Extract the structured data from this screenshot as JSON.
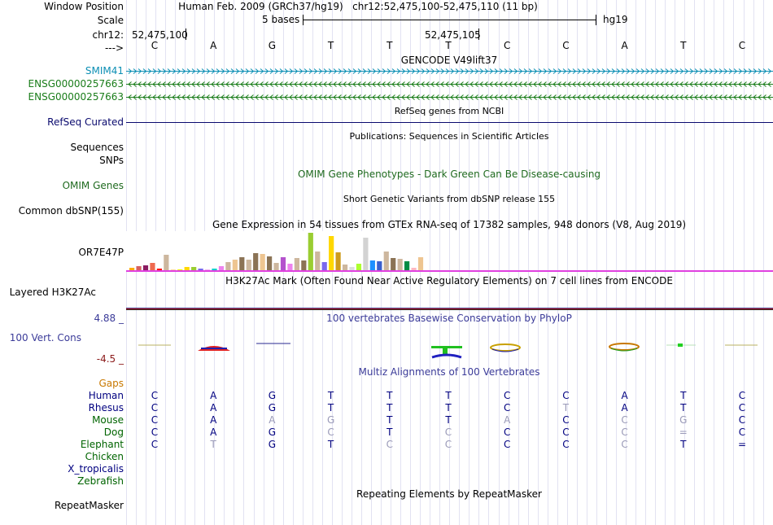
{
  "labels": {
    "window_position": "Window Position",
    "scale": "Scale",
    "chrom": "chr12:",
    "arrow": "--->",
    "smim41": "SMIM41",
    "ensg1": "ENSG00000257663",
    "ensg2": "ENSG00000257663",
    "refseq": "RefSeq Curated",
    "sequences": "Sequences",
    "snps": "SNPs",
    "omim": "OMIM Genes",
    "common_dbsnp": "Common dbSNP(155)",
    "or7e47p": "OR7E47P",
    "h3k27ac": "Layered H3K27Ac",
    "phylop_max": "4.88 _",
    "vert_cons": "100 Vert. Cons",
    "phylop_min": "-4.5 _",
    "gaps": "Gaps",
    "repeatmasker": "RepeatMasker"
  },
  "header": {
    "assembly": "Human Feb. 2009 (GRCh37/hg19)",
    "position": "chr12:52,475,100-52,475,110 (11 bp)",
    "scale_text": "5 bases",
    "scale_db": "hg19",
    "coord_left": "52,475,100",
    "coord_mid": "52,475,105"
  },
  "reference_bases": [
    "C",
    "A",
    "G",
    "T",
    "T",
    "T",
    "C",
    "C",
    "A",
    "T",
    "C"
  ],
  "track_titles": {
    "gencode": "GENCODE V49lift37",
    "refseq": "RefSeq genes from NCBI",
    "publications": "Publications: Sequences in Scientific Articles",
    "omim": "OMIM Gene Phenotypes - Dark Green Can Be Disease-causing",
    "dbsnp": "Short Genetic Variants from dbSNP release 155",
    "gtex": "Gene Expression in 54 tissues from GTEx RNA-seq of 17382 samples, 948 donors (V8, Aug 2019)",
    "h3k27ac": "H3K27Ac Mark (Often Found Near Active Regulatory Elements) on 7 cell lines from ENCODE",
    "phylop": "100 vertebrates Basewise Conservation by PhyloP",
    "multiz": "Multiz Alignments of 100 Vertebrates",
    "repeatmasker": "Repeating Elements by RepeatMasker"
  },
  "alignments": [
    {
      "species": "Human",
      "color": "#000080",
      "bases": [
        "C",
        "A",
        "G",
        "T",
        "T",
        "T",
        "C",
        "C",
        "A",
        "T",
        "C"
      ],
      "faint": [
        0,
        0,
        0,
        0,
        0,
        0,
        0,
        0,
        0,
        0,
        0
      ]
    },
    {
      "species": "Rhesus",
      "color": "#000080",
      "bases": [
        "C",
        "A",
        "G",
        "T",
        "T",
        "T",
        "C",
        "T",
        "A",
        "T",
        "C"
      ],
      "faint": [
        0,
        0,
        0,
        0,
        0,
        0,
        0,
        1,
        0,
        0,
        0
      ]
    },
    {
      "species": "Mouse",
      "color": "#006400",
      "bases": [
        "C",
        "A",
        "A",
        "G",
        "T",
        "T",
        "A",
        "C",
        "C",
        "G",
        "C"
      ],
      "faint": [
        0,
        0,
        1,
        1,
        0,
        0,
        1,
        0,
        1,
        1,
        0
      ]
    },
    {
      "species": "Dog",
      "color": "#006400",
      "bases": [
        "C",
        "A",
        "G",
        "C",
        "T",
        "C",
        "C",
        "C",
        "C",
        "=",
        "C"
      ],
      "faint": [
        0,
        0,
        0,
        1,
        0,
        1,
        0,
        0,
        1,
        1,
        0
      ]
    },
    {
      "species": "Elephant",
      "color": "#006400",
      "bases": [
        "C",
        "T",
        "G",
        "T",
        "C",
        "C",
        "C",
        "C",
        "C",
        "T",
        "="
      ],
      "faint": [
        0,
        1,
        0,
        0,
        1,
        1,
        0,
        0,
        1,
        0,
        0
      ]
    },
    {
      "species": "Chicken",
      "color": "#006400",
      "bases": [],
      "faint": []
    },
    {
      "species": "X_tropicalis",
      "color": "#000080",
      "bases": [],
      "faint": []
    },
    {
      "species": "Zebrafish",
      "color": "#006400",
      "bases": [],
      "faint": []
    }
  ],
  "gtex_bars": [
    {
      "value": 3,
      "color": "#FFAA00"
    },
    {
      "value": 5,
      "color": "#D76060"
    },
    {
      "value": 6,
      "color": "#8B1C62"
    },
    {
      "value": 9,
      "color": "#EE6A50"
    },
    {
      "value": 2,
      "color": "#FF0000"
    },
    {
      "value": 19,
      "color": "#CDB79E"
    },
    {
      "value": 1,
      "color": "#FFD39B"
    },
    {
      "value": 1,
      "color": "#EEEE00"
    },
    {
      "value": 4,
      "color": "#FFD700"
    },
    {
      "value": 4,
      "color": "#9ACD32"
    },
    {
      "value": 2,
      "color": "#7A67EE"
    },
    {
      "value": 1,
      "color": "#EEAEEE"
    },
    {
      "value": 2,
      "color": "#00CDCD"
    },
    {
      "value": 5,
      "color": "#EE82EE"
    },
    {
      "value": 10,
      "color": "#CDB79E"
    },
    {
      "value": 13,
      "color": "#EEC591"
    },
    {
      "value": 16,
      "color": "#8B7355"
    },
    {
      "value": 13,
      "color": "#CDB79E"
    },
    {
      "value": 21,
      "color": "#8B7355"
    },
    {
      "value": 20,
      "color": "#EEC591"
    },
    {
      "value": 17,
      "color": "#8B7355"
    },
    {
      "value": 9,
      "color": "#CDB79E"
    },
    {
      "value": 16,
      "color": "#B452CD"
    },
    {
      "value": 8,
      "color": "#EE82EE"
    },
    {
      "value": 15,
      "color": "#CDB79E"
    },
    {
      "value": 12,
      "color": "#8B7355"
    },
    {
      "value": 46,
      "color": "#9ACD32"
    },
    {
      "value": 23,
      "color": "#CDB79E"
    },
    {
      "value": 10,
      "color": "#7A67EE"
    },
    {
      "value": 42,
      "color": "#FFD700"
    },
    {
      "value": 22,
      "color": "#CD9B1D"
    },
    {
      "value": 7,
      "color": "#CDB79E"
    },
    {
      "value": 4,
      "color": "#DCDCDC"
    },
    {
      "value": 8,
      "color": "#ADFF2F"
    },
    {
      "value": 40,
      "color": "#D3D3D3"
    },
    {
      "value": 12,
      "color": "#1E90FF"
    },
    {
      "value": 11,
      "color": "#3A5FCD"
    },
    {
      "value": 23,
      "color": "#CDB79E"
    },
    {
      "value": 15,
      "color": "#8B7355"
    },
    {
      "value": 14,
      "color": "#CDB79E"
    },
    {
      "value": 11,
      "color": "#008B45"
    },
    {
      "value": 3,
      "color": "#FFB6C1"
    },
    {
      "value": 16,
      "color": "#EEC591"
    }
  ],
  "colors": {
    "gencode_smim41": "#0c8fb4",
    "gencode_ensg": "#1a7d1a",
    "refseq": "#0a0a6e",
    "track_title_blue": "#3b3b99",
    "omim_title": "#1f6a1f",
    "h3k27ac_line": "#e040e0",
    "gaps_label": "#c87800"
  }
}
